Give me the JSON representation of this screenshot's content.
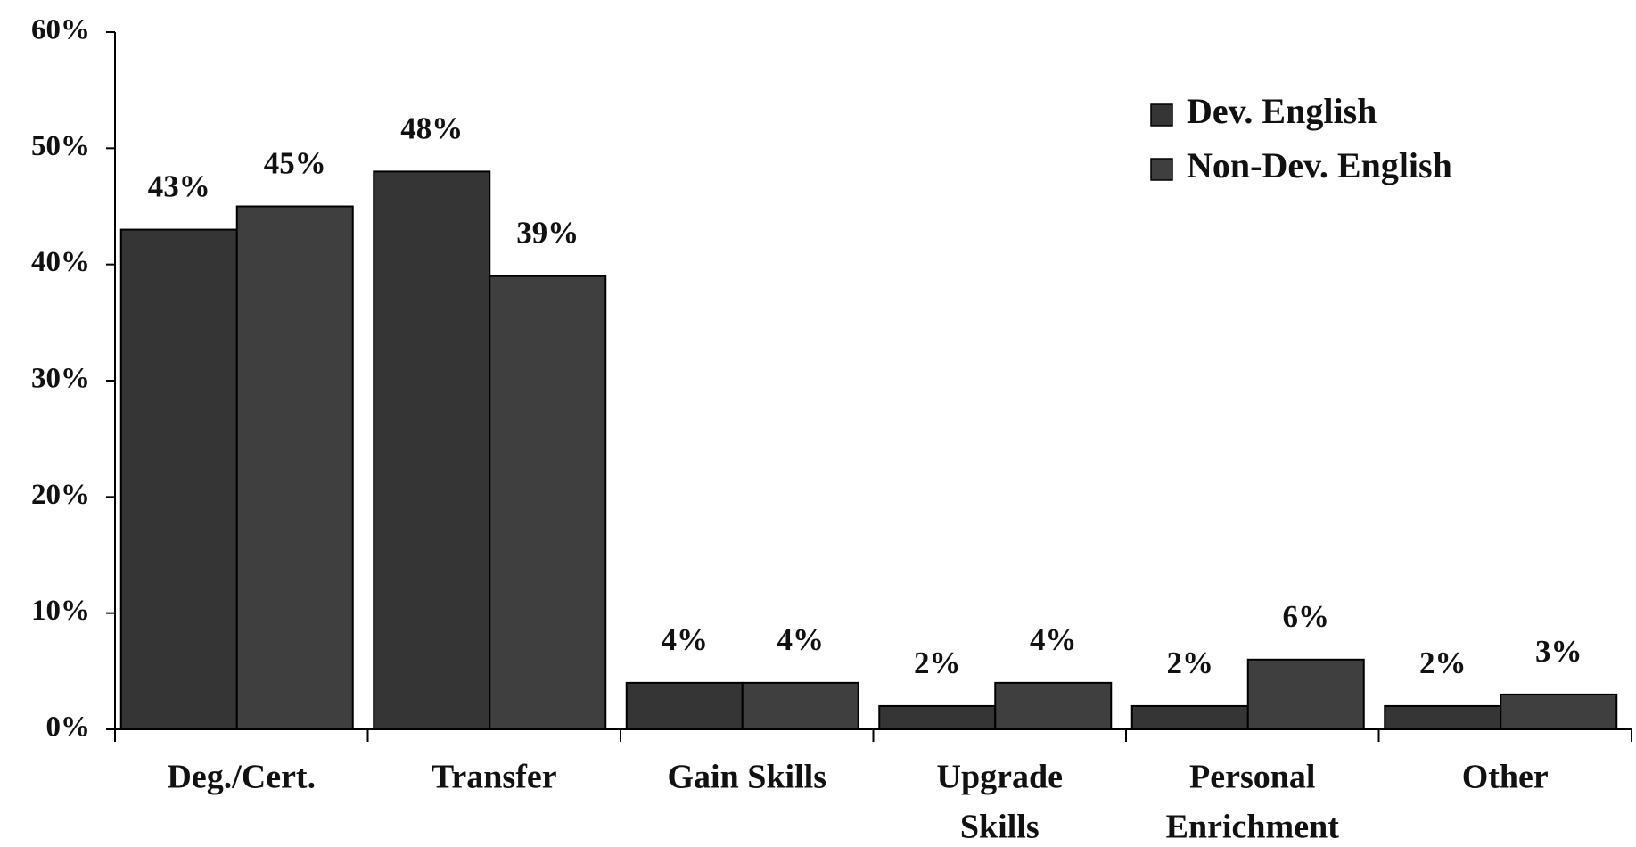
{
  "chart_data": {
    "type": "bar",
    "categories": [
      "Deg./Cert.",
      "Transfer",
      "Gain Skills",
      [
        "Upgrade",
        "Skills"
      ],
      [
        "Personal",
        "Enrichment"
      ],
      "Other"
    ],
    "series": [
      {
        "name": "Dev. English",
        "color": "#353535",
        "values": [
          43,
          48,
          4,
          2,
          2,
          2
        ],
        "value_labels": [
          "43%",
          "48%",
          "4%",
          "2%",
          "2%",
          "2%"
        ]
      },
      {
        "name": "Non-Dev. English",
        "color": "#3f3f3f",
        "values": [
          45,
          39,
          4,
          4,
          6,
          3
        ],
        "value_labels": [
          "45%",
          "39%",
          "4%",
          "4%",
          "6%",
          "3%"
        ]
      }
    ],
    "ylim": [
      0,
      60
    ],
    "yticks": [
      {
        "value": 0,
        "label": "0%"
      },
      {
        "value": 10,
        "label": "10%"
      },
      {
        "value": 20,
        "label": "20%"
      },
      {
        "value": 30,
        "label": "30%"
      },
      {
        "value": 40,
        "label": "40%"
      },
      {
        "value": 50,
        "label": "50%"
      },
      {
        "value": 60,
        "label": "60%"
      }
    ],
    "legend": "upper right"
  }
}
